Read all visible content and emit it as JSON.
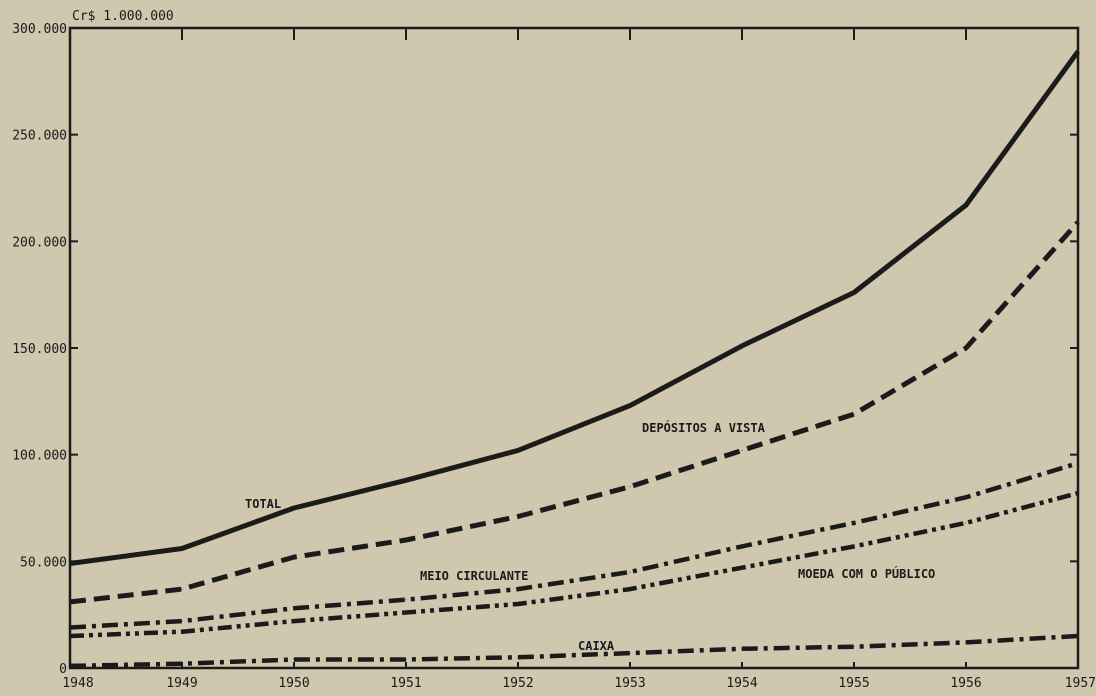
{
  "chart_data": {
    "type": "line",
    "title": "",
    "unit_label": "Cr$ 1.000.000",
    "xlabel": "",
    "ylabel": "",
    "x": [
      "1948",
      "1949",
      "1950",
      "1951",
      "1952",
      "1953",
      "1954",
      "1955",
      "1956",
      "1957"
    ],
    "yticks": [
      "0",
      "50.000",
      "100.000",
      "150.000",
      "200.000",
      "250.000",
      "300.000"
    ],
    "ylim": [
      0,
      300000
    ],
    "grid": false,
    "colors": {
      "background": "#cfc7ae",
      "ink": "#1b1b1b"
    },
    "series": [
      {
        "name": "TOTAL",
        "style": "solid",
        "values": [
          49000,
          56000,
          75000,
          88000,
          102000,
          123000,
          151000,
          176000,
          217000,
          289000
        ]
      },
      {
        "name": "DEPÓSITOS A VISTA",
        "style": "dashed",
        "values": [
          31000,
          37000,
          52000,
          60000,
          71000,
          85000,
          102000,
          119000,
          150000,
          209000
        ]
      },
      {
        "name": "MEIO CIRCULANTE",
        "style": "dash-dot",
        "values": [
          19000,
          22000,
          28000,
          32000,
          37000,
          45000,
          57000,
          68000,
          80000,
          96000
        ]
      },
      {
        "name": "MOEDA COM O PÚBLICO",
        "style": "dash-dot-dot",
        "values": [
          15000,
          17000,
          22000,
          26000,
          30000,
          37000,
          47000,
          57000,
          68000,
          82000
        ]
      },
      {
        "name": "CAIXA",
        "style": "dash-dot",
        "values": [
          1000,
          2000,
          4000,
          4000,
          5000,
          7000,
          9000,
          10000,
          12000,
          15000
        ]
      }
    ]
  }
}
